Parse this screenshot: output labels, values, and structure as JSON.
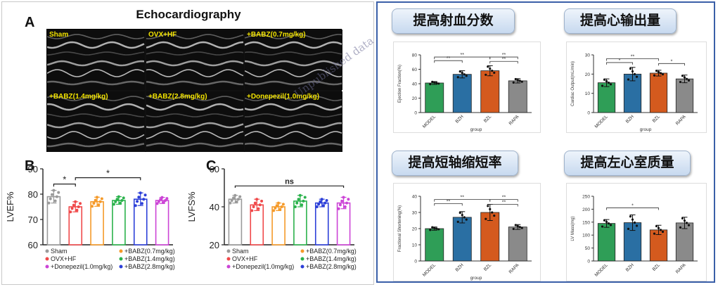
{
  "echo": {
    "title": "Echocardiography",
    "panel_label": "A",
    "cells": [
      "Sham",
      "OVX+HF",
      "+BABZ(0.7mg/kg)",
      "+BABZ(1.4mg/kg)",
      "+BABZ(2.8mg/kg)",
      "+Donepezil(1.0mg/kg)"
    ]
  },
  "watermark": "Unpublished data",
  "banners": [
    "提高射血分数",
    "提高心输出量",
    "提高短轴缩短率",
    "提高左心室质量"
  ],
  "chart_data": [
    {
      "type": "bar",
      "panel_label": "B",
      "ylabel": "LVEF%",
      "ylim": [
        60,
        90
      ],
      "yticks": [
        "60",
        "70",
        "80",
        "90"
      ],
      "categories": [
        "Sham",
        "OVX+HF",
        "+BABZ(0.7mg/kg)",
        "+BABZ(1.4mg/kg)",
        "+BABZ(2.8mg/kg)",
        "+Donepezil(1.0mg/kg)"
      ],
      "values": [
        79,
        75,
        77,
        77.5,
        78,
        77.5
      ],
      "errors": [
        2.5,
        2,
        1.8,
        1.5,
        2.5,
        1.2
      ],
      "colors": [
        "#9a9a9a",
        "#f0494a",
        "#f59a2a",
        "#2bb24c",
        "#2c3fd8",
        "#cc44d6"
      ],
      "annotations": [
        "*",
        "*"
      ],
      "legend": [
        "Sham",
        "OVX+HF",
        "+Donepezil(1.0mg/kg)",
        "+BABZ(0.7mg/kg)",
        "+BABZ(1.4mg/kg)",
        "+BABZ(2.8mg/kg)"
      ]
    },
    {
      "type": "bar",
      "panel_label": "C",
      "ylabel": "LVFS%",
      "ylim": [
        20,
        60
      ],
      "yticks": [
        "20",
        "40",
        "60"
      ],
      "categories": [
        "Sham",
        "OVX+HF",
        "+BABZ(0.7mg/kg)",
        "+BABZ(1.4mg/kg)",
        "+BABZ(2.8mg/kg)",
        "+Donepezil(1.0mg/kg)"
      ],
      "values": [
        44,
        41,
        40,
        43,
        42,
        42
      ],
      "errors": [
        2,
        3,
        2,
        3,
        2,
        3
      ],
      "colors": [
        "#9a9a9a",
        "#f0494a",
        "#f59a2a",
        "#2bb24c",
        "#2c3fd8",
        "#cc44d6"
      ],
      "annotations": [
        "ns"
      ],
      "legend": [
        "Sham",
        "OVX+HF",
        "+Donepezil(1.0mg/kg)",
        "+BABZ(0.7mg/kg)",
        "+BABZ(1.4mg/kg)",
        "+BABZ(2.8mg/kg)"
      ]
    },
    {
      "type": "bar",
      "ylabel": "Ejection Fraction(%)",
      "xlabel": "group",
      "ylim": [
        0,
        80
      ],
      "yticks": [
        "0",
        "20",
        "40",
        "60",
        "80"
      ],
      "categories": [
        "MODEL",
        "BZH",
        "BZL",
        "RAPA"
      ],
      "values": [
        41,
        53,
        58,
        44
      ],
      "errors": [
        2,
        5,
        7,
        3
      ],
      "colors": [
        "#2f9e57",
        "#2a6fa3",
        "#d45a1e",
        "#8a8a8a"
      ],
      "annotations": [
        "**",
        "**",
        "**",
        "**"
      ]
    },
    {
      "type": "bar",
      "ylabel": "Cardiac Output(mL/min)",
      "xlabel": "group",
      "ylim": [
        0,
        30
      ],
      "yticks": [
        "0",
        "10",
        "20",
        "30"
      ],
      "categories": [
        "MODEL",
        "BZH",
        "BZL",
        "RAPA"
      ],
      "values": [
        15.5,
        20,
        20.5,
        17.5
      ],
      "errors": [
        2,
        3.5,
        1.5,
        2
      ],
      "colors": [
        "#2f9e57",
        "#2a6fa3",
        "#d45a1e",
        "#8a8a8a"
      ],
      "annotations": [
        "*",
        "**",
        "*"
      ]
    },
    {
      "type": "bar",
      "ylabel": "Fractional Shortening(%)",
      "xlabel": "group",
      "ylim": [
        0,
        40
      ],
      "yticks": [
        "0",
        "10",
        "20",
        "30",
        "40"
      ],
      "categories": [
        "MODEL",
        "BZH",
        "BZL",
        "RAPA"
      ],
      "values": [
        20,
        27,
        30,
        21
      ],
      "errors": [
        1,
        3.5,
        5,
        1.5
      ],
      "colors": [
        "#2f9e57",
        "#2a6fa3",
        "#d45a1e",
        "#8a8a8a"
      ],
      "annotations": [
        "**",
        "**",
        "**",
        "**"
      ]
    },
    {
      "type": "bar",
      "ylabel": "LV Mass(mg)",
      "xlabel": "",
      "ylim": [
        0,
        250
      ],
      "yticks": [
        "0",
        "50",
        "100",
        "150",
        "200",
        "250"
      ],
      "categories": [
        "MODEL",
        "BZH",
        "BZL",
        "RAPA"
      ],
      "values": [
        145,
        148,
        120,
        147
      ],
      "errors": [
        15,
        30,
        18,
        22
      ],
      "colors": [
        "#2f9e57",
        "#2a6fa3",
        "#d45a1e",
        "#8a8a8a"
      ],
      "annotations": [
        "*"
      ]
    }
  ]
}
